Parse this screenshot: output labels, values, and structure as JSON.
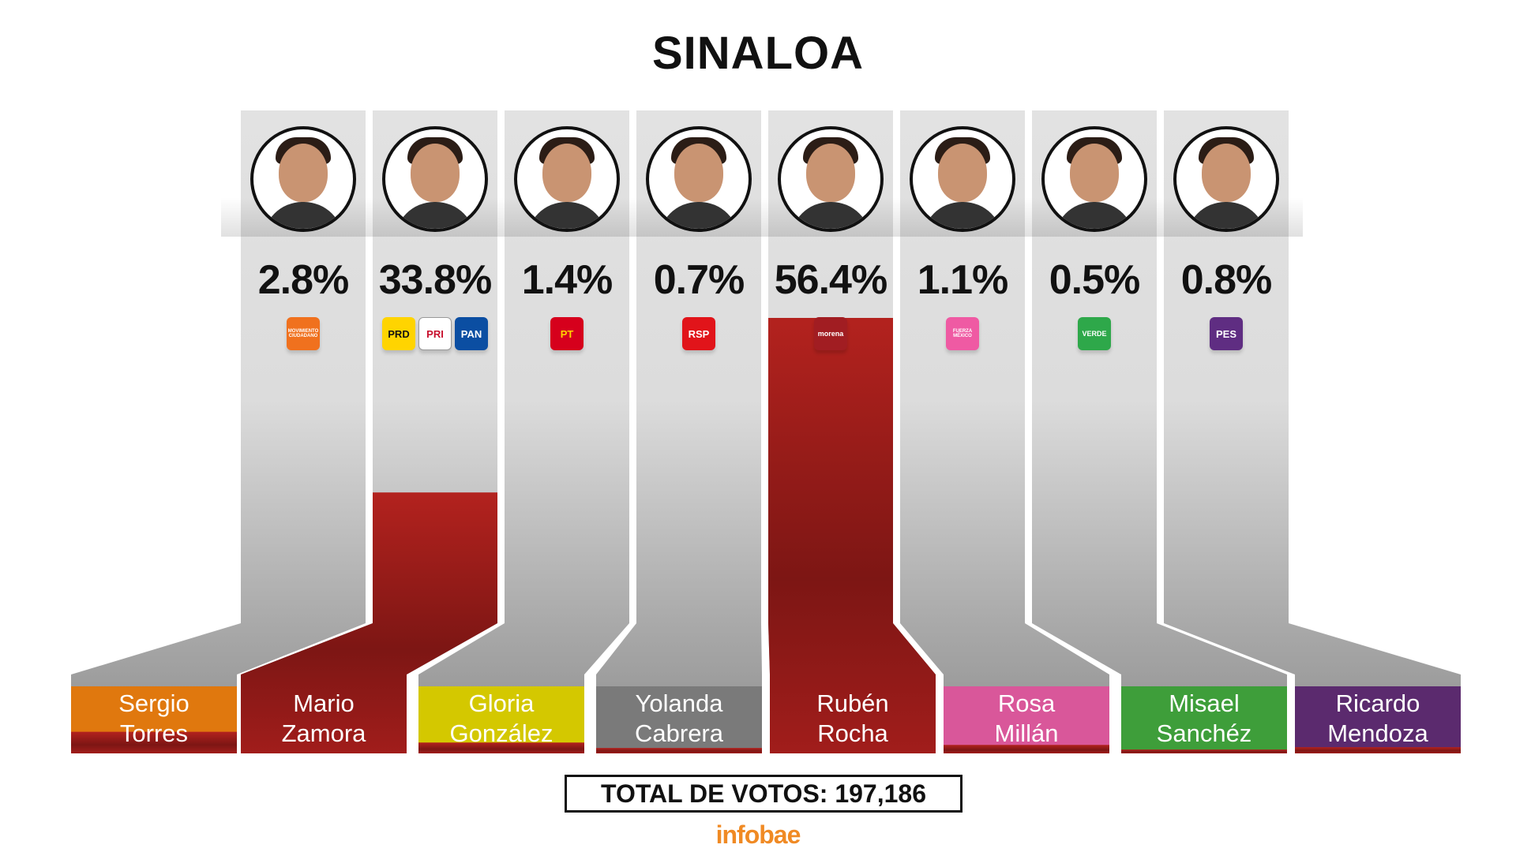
{
  "title": "SINALOA",
  "total_label": "TOTAL DE VOTOS: 197,186",
  "brand": "infobae",
  "colors": {
    "column_bg": "#dedede",
    "bar": "#9e1f1d",
    "bar_highlight": "#a21f1c"
  },
  "candidates": [
    {
      "first": "Sergio",
      "last": "Torres",
      "pct_label": "2.8%",
      "name_color": "#e0780e",
      "parties": [
        {
          "label": "MOVIMIENTO CIUDADANO",
          "bg": "#f0711e",
          "fg": "#ffffff"
        }
      ]
    },
    {
      "first": "Mario",
      "last": "Zamora",
      "pct_label": "33.8%",
      "name_color": "#b52a22",
      "parties": [
        {
          "label": "PRD",
          "bg": "#ffd400",
          "fg": "#111111"
        },
        {
          "label": "PRI",
          "bg": "#ffffff",
          "fg": "#c8102e"
        },
        {
          "label": "PAN",
          "bg": "#0b4ea2",
          "fg": "#ffffff"
        }
      ]
    },
    {
      "first": "Gloria",
      "last": "González",
      "pct_label": "1.4%",
      "name_color": "#d4c800",
      "parties": [
        {
          "label": "PT",
          "bg": "#d6001c",
          "fg": "#ffd400"
        }
      ]
    },
    {
      "first": "Yolanda",
      "last": "Cabrera",
      "pct_label": "0.7%",
      "name_color": "#7a7a7a",
      "parties": [
        {
          "label": "RSP",
          "bg": "#e1141a",
          "fg": "#ffffff"
        }
      ]
    },
    {
      "first": "Rubén",
      "last": "Rocha",
      "pct_label": "56.4%",
      "name_color": "#a61e1d",
      "parties": [
        {
          "label": "morena",
          "bg": "#a11d22",
          "fg": "#ffffff"
        }
      ]
    },
    {
      "first": "Rosa",
      "last": "Millán",
      "pct_label": "1.1%",
      "name_color": "#d9579a",
      "parties": [
        {
          "label": "FUERZA MÉXICO",
          "bg": "#ef5aa3",
          "fg": "#ffffff"
        }
      ]
    },
    {
      "first": "Misael",
      "last": "Sanchéz",
      "pct_label": "0.5%",
      "name_color": "#3e9e3a",
      "parties": [
        {
          "label": "VERDE",
          "bg": "#2ea84a",
          "fg": "#ffffff"
        }
      ]
    },
    {
      "first": "Ricardo",
      "last": "Mendoza",
      "pct_label": "0.8%",
      "name_color": "#5b2a6e",
      "parties": [
        {
          "label": "PES",
          "bg": "#5f2d82",
          "fg": "#ffffff"
        }
      ]
    }
  ],
  "chart_data": {
    "type": "bar",
    "categories": [
      "Sergio Torres",
      "Mario Zamora",
      "Gloria González",
      "Yolanda Cabrera",
      "Rubén Rocha",
      "Rosa Millán",
      "Misael Sanchéz",
      "Ricardo Mendoza"
    ],
    "values": [
      2.8,
      33.8,
      1.4,
      0.7,
      56.4,
      1.1,
      0.5,
      0.8
    ],
    "title": "SINALOA",
    "ylim": [
      0,
      56.4
    ],
    "unit": "%",
    "total": "TOTAL DE VOTOS: 197,186"
  }
}
